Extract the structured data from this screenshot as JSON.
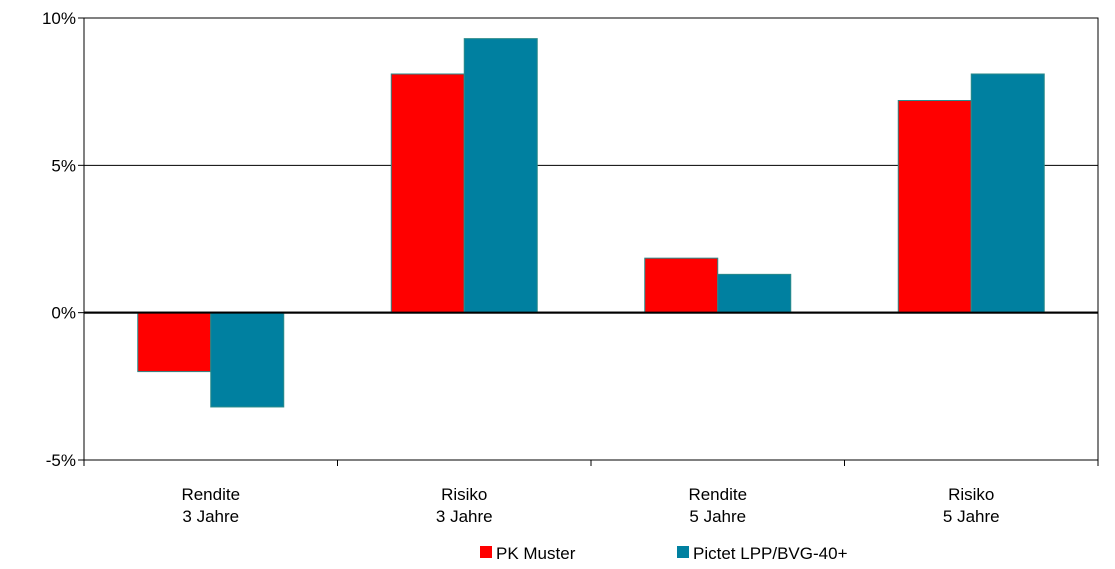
{
  "chart_data": {
    "type": "bar",
    "categories": [
      [
        "Rendite",
        "3 Jahre"
      ],
      [
        "Risiko",
        "3 Jahre"
      ],
      [
        "Rendite",
        "5 Jahre"
      ],
      [
        "Risiko",
        "5 Jahre"
      ]
    ],
    "series": [
      {
        "name": "PK Muster",
        "color": "#ff0000",
        "values": [
          -2.0,
          8.1,
          1.85,
          7.2
        ]
      },
      {
        "name": "Pictet LPP/BVG-40+",
        "color": "#0080a0",
        "values": [
          -3.2,
          9.3,
          1.3,
          8.1
        ]
      }
    ],
    "y_ticks": [
      {
        "value": 10,
        "label": "10%"
      },
      {
        "value": 5,
        "label": "5%"
      },
      {
        "value": 0,
        "label": "0%"
      },
      {
        "value": -5,
        "label": "-5%"
      }
    ],
    "ylim": [
      -5,
      10
    ],
    "grid": true,
    "legend_position": "bottom",
    "title": "",
    "xlabel": "",
    "ylabel": ""
  }
}
